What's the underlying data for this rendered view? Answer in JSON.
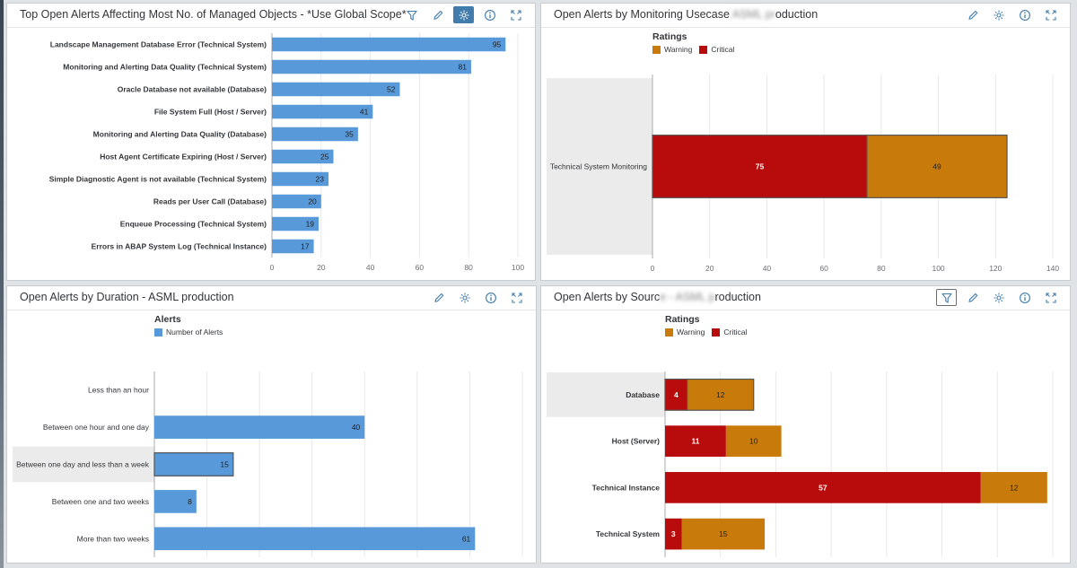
{
  "colors": {
    "blue": "#5899da",
    "critical": "#b80c0c",
    "warning": "#c87b0a",
    "hover": "#ebebeb",
    "grid": "#e8e8e8",
    "axis": "#a8abae",
    "accent": "#427cac"
  },
  "panels": [
    {
      "title": "Top Open Alerts Affecting Most No. of Managed Objects - *Use Global Scope*",
      "toolbar": [
        "filter-icon",
        "edit-icon",
        "settings-gear-icon",
        "info-icon",
        "fullscreen-icon"
      ],
      "active_tool": "settings-gear-icon"
    },
    {
      "title": "Open Alerts by Monitoring Usecase",
      "title_suffix": "oduction",
      "toolbar": [
        "edit-icon",
        "settings-gear-icon",
        "info-icon",
        "fullscreen-icon"
      ]
    },
    {
      "title": "Open Alerts by Duration - ASML production",
      "toolbar": [
        "edit-icon",
        "settings-gear-icon",
        "info-icon",
        "fullscreen-icon"
      ]
    },
    {
      "title": "Open Alerts by Sourc",
      "title_suffix": "roduction",
      "toolbar": [
        "filter-icon",
        "edit-icon",
        "settings-gear-icon",
        "info-icon",
        "fullscreen-icon"
      ],
      "outlined_tool": "filter-icon"
    }
  ],
  "chart_data": [
    {
      "type": "bar",
      "orientation": "horizontal",
      "categories": [
        "Landscape Management Database Error (Technical System)",
        "Monitoring and Alerting Data Quality (Technical System)",
        "Oracle Database not available (Database)",
        "File System Full (Host / Server)",
        "Monitoring and Alerting Data Quality (Database)",
        "Host Agent Certificate Expiring (Host / Server)",
        "Simple Diagnostic Agent is not available (Technical System)",
        "Reads per User Call (Database)",
        "Enqueue Processing (Technical System)",
        "Errors in ABAP System Log (Technical Instance)"
      ],
      "values": [
        95,
        81,
        52,
        41,
        35,
        25,
        23,
        20,
        19,
        17
      ],
      "xlim": [
        0,
        100
      ],
      "xticks": [
        0,
        20,
        40,
        60,
        80,
        100
      ],
      "grid": true
    },
    {
      "type": "bar",
      "orientation": "horizontal",
      "stacked": true,
      "legend_title": "Ratings",
      "categories": [
        "Technical System Monitoring"
      ],
      "series": [
        {
          "name": "Critical",
          "values": [
            75
          ]
        },
        {
          "name": "Warning",
          "values": [
            49
          ]
        }
      ],
      "legend_order": [
        "Warning",
        "Critical"
      ],
      "xlim": [
        0,
        140
      ],
      "xticks": [
        0,
        20,
        40,
        60,
        80,
        100,
        120,
        140
      ],
      "highlighted_category": "Technical System Monitoring",
      "grid": true
    },
    {
      "type": "bar",
      "orientation": "horizontal",
      "legend_title": "Alerts",
      "categories": [
        "Less than an hour",
        "Between one hour and one day",
        "Between one day and less than a week",
        "Between one and two weeks",
        "More than two weeks"
      ],
      "series": [
        {
          "name": "Number of Alerts",
          "values": [
            0,
            40,
            15,
            8,
            61
          ]
        }
      ],
      "xlim": [
        0,
        70
      ],
      "xticks": [
        0,
        10,
        20,
        30,
        40,
        50,
        60,
        70
      ],
      "highlighted_category": "Between one day and less than a week",
      "grid": true
    },
    {
      "type": "bar",
      "orientation": "horizontal",
      "stacked": true,
      "legend_title": "Ratings",
      "categories": [
        "Database",
        "Host (Server)",
        "Technical Instance",
        "Technical System"
      ],
      "series": [
        {
          "name": "Critical",
          "values": [
            4,
            11,
            57,
            3
          ]
        },
        {
          "name": "Warning",
          "values": [
            12,
            10,
            12,
            15
          ]
        }
      ],
      "legend_order": [
        "Warning",
        "Critical"
      ],
      "xlim": [
        0,
        70
      ],
      "xticks": [
        0,
        10,
        20,
        30,
        40,
        50,
        60,
        70
      ],
      "highlighted_category": "Database",
      "grid": true
    }
  ]
}
